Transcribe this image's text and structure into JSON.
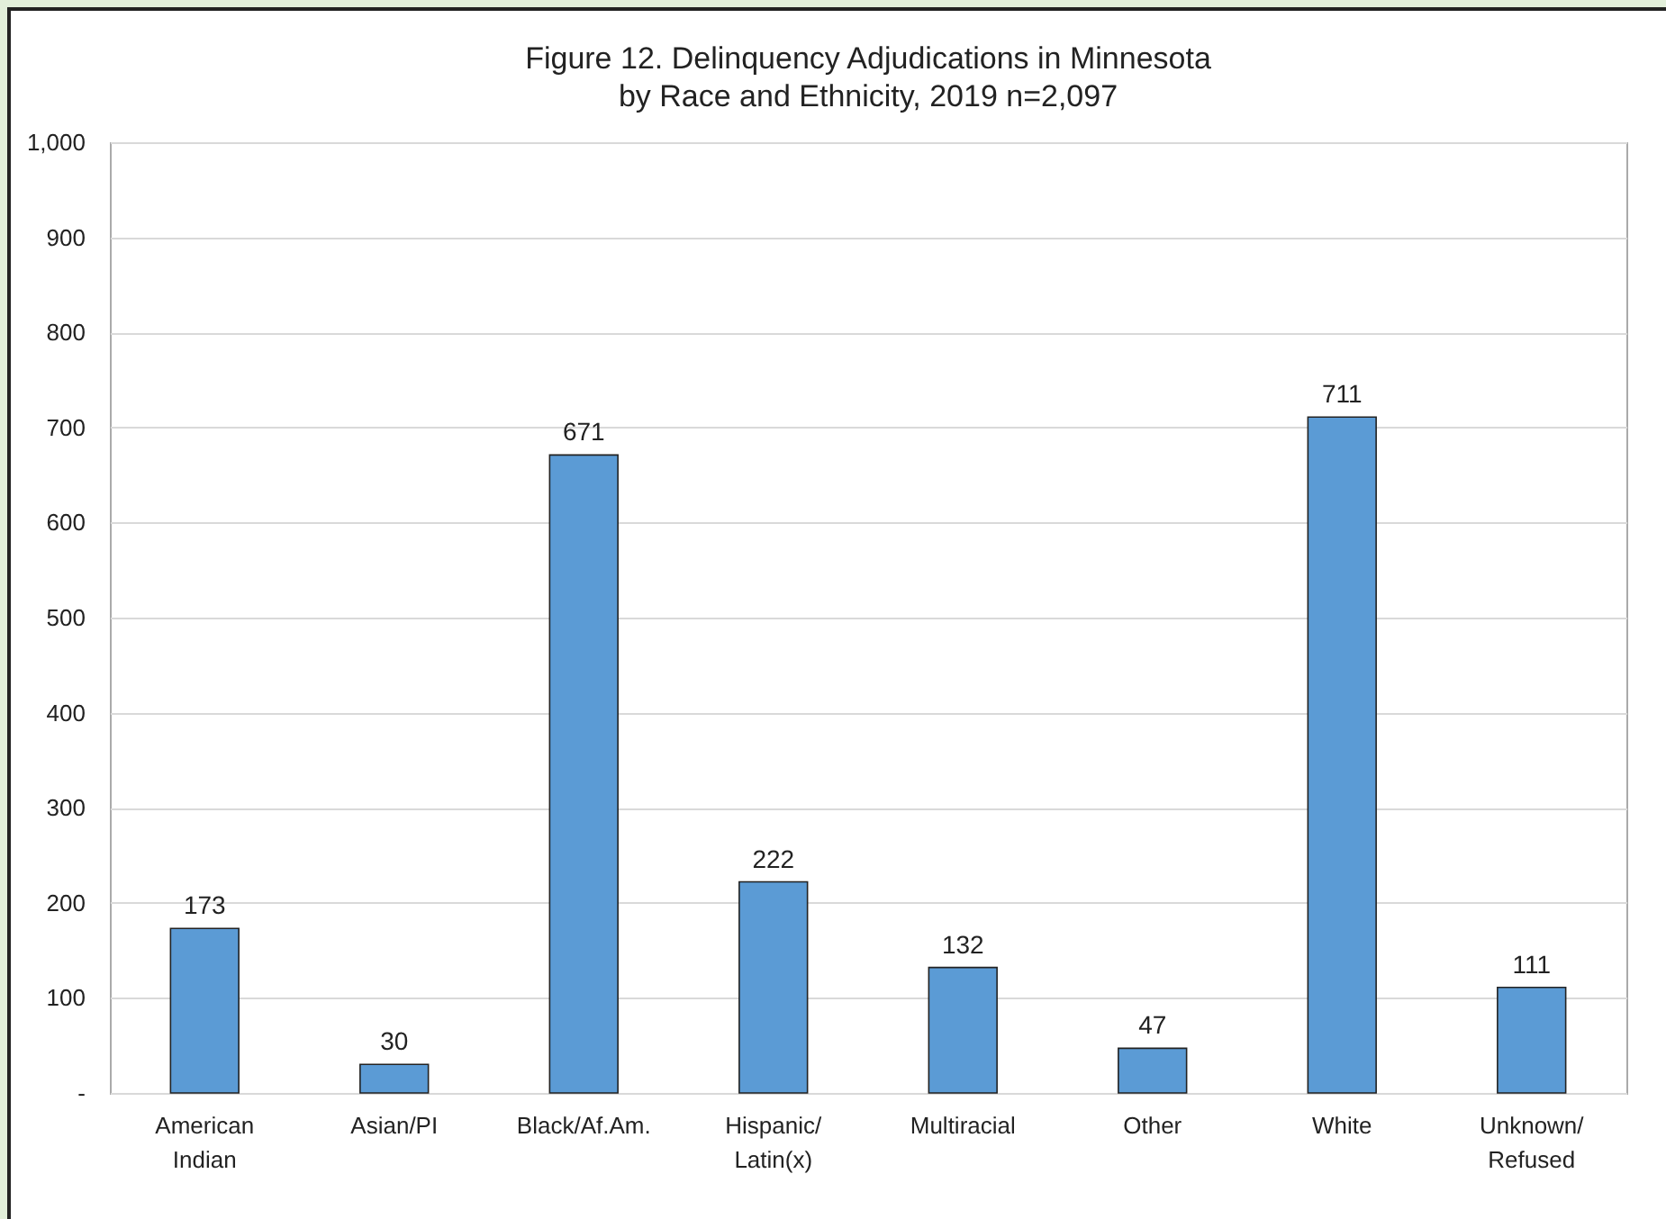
{
  "chart_data": {
    "type": "bar",
    "title": "Figure 12. Delinquency Adjudications in Minnesota",
    "subtitle": "by Race and Ethnicity, 2019 n=2,097",
    "categories": [
      "American Indian",
      "Asian/PI",
      "Black/Af.Am.",
      "Hispanic/Latin(x)",
      "Multiracial",
      "Other",
      "White",
      "Unknown/Refused"
    ],
    "values": [
      173,
      30,
      671,
      222,
      132,
      47,
      711,
      111
    ],
    "color": "#5b9bd5",
    "ylim": [
      0,
      1000
    ],
    "yticks": [
      {
        "value": 0,
        "label": "-"
      },
      100,
      200,
      300,
      400,
      500,
      600,
      700,
      800,
      900,
      {
        "value": 1000,
        "label": "1,000"
      }
    ],
    "grid": "y",
    "data_labels": true
  }
}
